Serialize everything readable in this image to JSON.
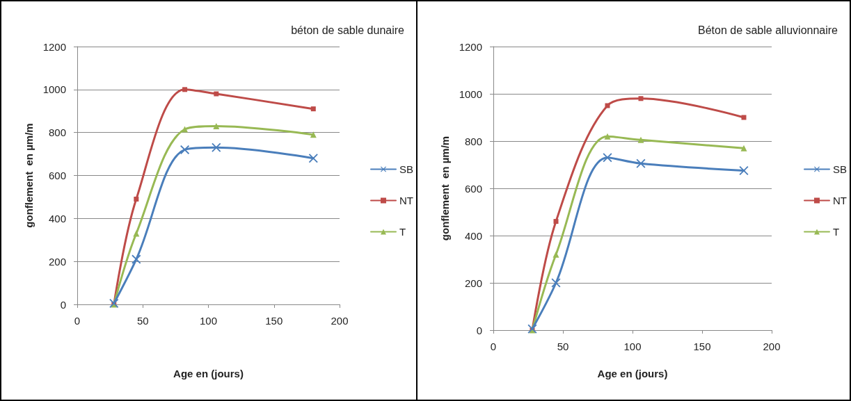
{
  "chart_data": [
    {
      "type": "line",
      "title": "béton de sable dunaire",
      "xlabel": "Age en (jours)",
      "ylabel": "gonflement  en µm/m",
      "xlim": [
        0,
        200
      ],
      "xticks": [
        0,
        50,
        100,
        150,
        200
      ],
      "ylim": [
        0,
        1200
      ],
      "yticks": [
        0,
        200,
        400,
        600,
        800,
        1000,
        1200
      ],
      "grid": "y",
      "legend": "right",
      "x": [
        28,
        45,
        82,
        106,
        180
      ],
      "series": [
        {
          "name": "SB",
          "color": "#4a7ebb",
          "marker": "cross",
          "values": [
            5,
            210,
            720,
            730,
            680
          ]
        },
        {
          "name": "NT",
          "color": "#be4b48",
          "marker": "square",
          "values": [
            0,
            490,
            1000,
            980,
            910
          ]
        },
        {
          "name": "T",
          "color": "#98b954",
          "marker": "triangle",
          "values": [
            0,
            330,
            815,
            830,
            790
          ]
        }
      ]
    },
    {
      "type": "line",
      "title": "Béton de sable alluvionnaire",
      "xlabel": "Age en (jours)",
      "ylabel": "gonflement  en µm/m",
      "xlim": [
        0,
        200
      ],
      "xticks": [
        0,
        50,
        100,
        150,
        200
      ],
      "ylim": [
        0,
        1200
      ],
      "yticks": [
        0,
        200,
        400,
        600,
        800,
        1000,
        1200
      ],
      "grid": "y",
      "legend": "right",
      "x": [
        28,
        45,
        82,
        106,
        180
      ],
      "series": [
        {
          "name": "SB",
          "color": "#4a7ebb",
          "marker": "cross",
          "values": [
            5,
            200,
            730,
            705,
            675
          ]
        },
        {
          "name": "NT",
          "color": "#be4b48",
          "marker": "square",
          "values": [
            0,
            460,
            950,
            980,
            900
          ]
        },
        {
          "name": "T",
          "color": "#98b954",
          "marker": "triangle",
          "values": [
            0,
            320,
            820,
            805,
            770
          ]
        }
      ]
    }
  ]
}
